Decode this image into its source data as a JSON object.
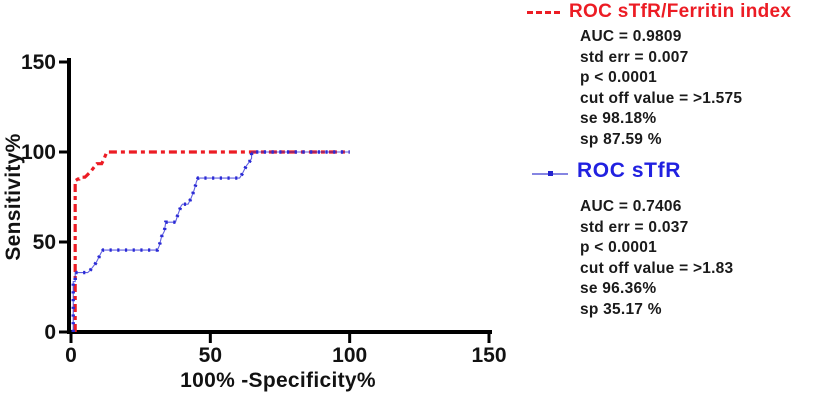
{
  "chart_data": {
    "type": "line",
    "title": "",
    "xlabel": "100% -Specificity%",
    "ylabel": "Sensitivity%",
    "xlim": [
      0,
      150
    ],
    "ylim": [
      0,
      150
    ],
    "xticks": [
      "0",
      "50",
      "100",
      "150"
    ],
    "yticks": [
      "0",
      "50",
      "100",
      "150"
    ],
    "grid": false,
    "legend_position": "right",
    "series": [
      {
        "name": "ROC sTfR/Ferritin index",
        "color": "#EC1C24",
        "line_style": "dashed",
        "points": [
          [
            1.5,
            0
          ],
          [
            1.5,
            84
          ],
          [
            2.5,
            85
          ],
          [
            3,
            85
          ],
          [
            3.5,
            86
          ],
          [
            5,
            86
          ],
          [
            5.7,
            87
          ],
          [
            7,
            89
          ],
          [
            8,
            91
          ],
          [
            9.3,
            93.5
          ],
          [
            11,
            93.5
          ],
          [
            11.8,
            96
          ],
          [
            12.4,
            98.3
          ],
          [
            12.9,
            100
          ],
          [
            100,
            100
          ]
        ]
      },
      {
        "name": "ROC sTfR",
        "color": "#2B2BD5",
        "line_style": "solid-with-dot-markers",
        "points": [
          [
            0.8,
            0
          ],
          [
            0.8,
            28
          ],
          [
            1.5,
            28
          ],
          [
            1.5,
            33
          ],
          [
            6,
            33
          ],
          [
            7,
            34.5
          ],
          [
            8,
            36.5
          ],
          [
            9,
            38.5
          ],
          [
            10,
            41.5
          ],
          [
            10.8,
            44
          ],
          [
            11.5,
            45.5
          ],
          [
            31,
            45.5
          ],
          [
            31.7,
            48
          ],
          [
            32.5,
            53
          ],
          [
            33.5,
            56
          ],
          [
            34,
            61
          ],
          [
            37.5,
            61
          ],
          [
            38.3,
            65
          ],
          [
            39.5,
            70
          ],
          [
            40,
            71
          ],
          [
            42,
            71
          ],
          [
            43,
            74
          ],
          [
            44,
            78
          ],
          [
            44.6,
            81
          ],
          [
            45,
            83.5
          ],
          [
            45.6,
            85.5
          ],
          [
            60.5,
            85.5
          ],
          [
            61.5,
            88
          ],
          [
            62.3,
            90.5
          ],
          [
            63,
            92.5
          ],
          [
            64,
            94.5
          ],
          [
            64.8,
            96.5
          ],
          [
            64.8,
            100
          ],
          [
            100,
            100
          ]
        ]
      }
    ]
  },
  "legend": {
    "entries": [
      {
        "title": "ROC sTfR/Ferritin index",
        "title_color": "#EC1C24",
        "icon": "red-dashed-line-icon",
        "stats": [
          "AUC = 0.9809",
          "std err = 0.007",
          "p < 0.0001",
          "cut off value = >1.575",
          "se 98.18%",
          "sp 87.59 %"
        ]
      },
      {
        "title": "ROC sTfR",
        "title_color": "#2121E0",
        "icon": "blue-line-dot-icon",
        "stats": [
          "AUC = 0.7406",
          "std err = 0.037",
          "p < 0.0001",
          "cut off value = >1.83",
          "se 96.36%",
          "sp 35.17 %"
        ]
      }
    ]
  }
}
